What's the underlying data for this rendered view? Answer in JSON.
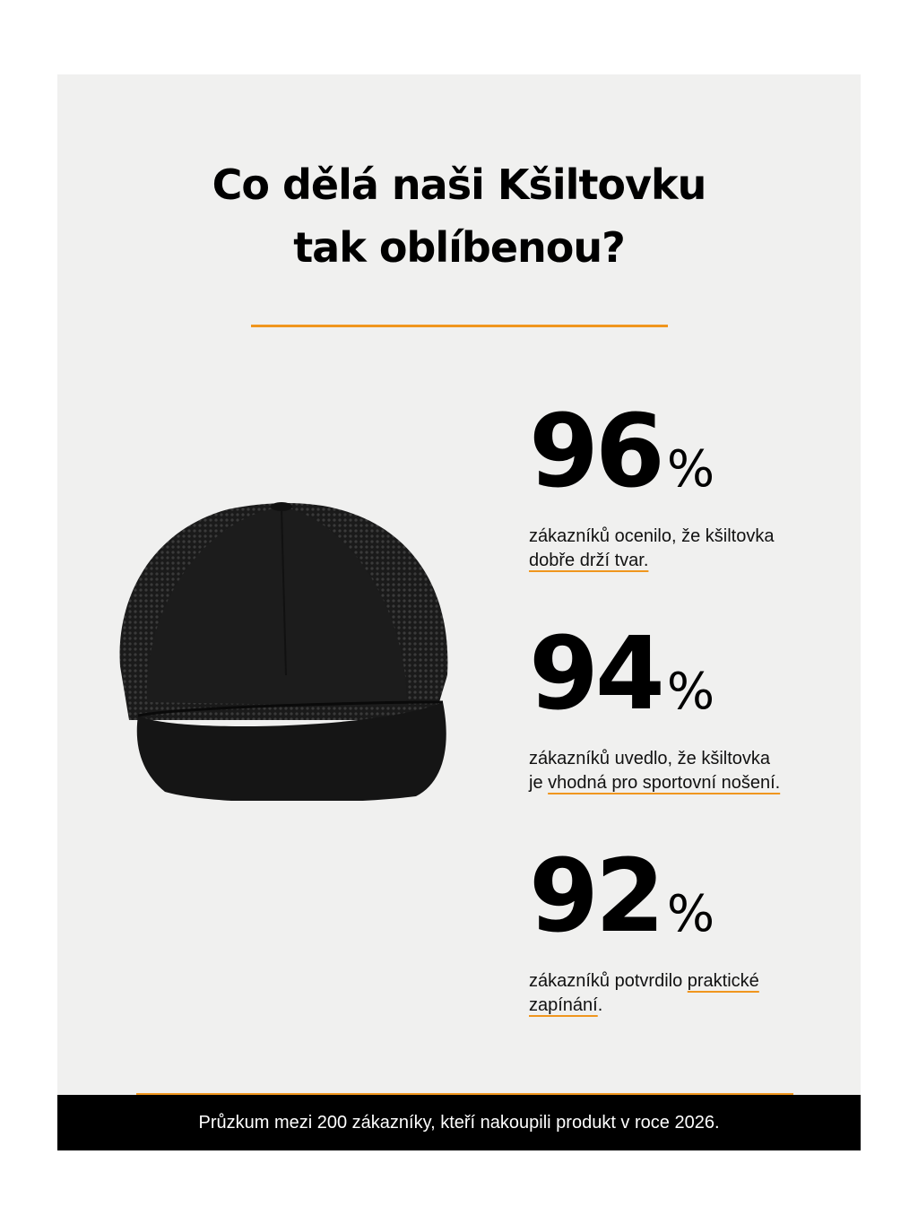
{
  "title": {
    "line1": "Co dělá naši Kšiltovku",
    "line2": "tak oblíbenou?"
  },
  "colors": {
    "accent": "#f0961e",
    "background": "#f0f0ef",
    "footer": "#000000"
  },
  "image": {
    "icon": "black-trucker-cap-image"
  },
  "stats": [
    {
      "value": "96",
      "unit": "%",
      "text_plain": "zákazníků ocenilo, že kšiltovka",
      "text_underlined": "dobře drží tvar."
    },
    {
      "value": "94",
      "unit": "%",
      "text_plain": "zákazníků uvedlo, že kšiltovka",
      "text_plain2": "je",
      "text_underlined": "vhodná pro sportovní nošení."
    },
    {
      "value": "92",
      "unit": "%",
      "text_plain": "zákazníků potvrdilo",
      "text_underlined": "praktické",
      "text_underlined2": "zapínání",
      "text_end": "."
    }
  ],
  "footer": {
    "text": "Průzkum mezi 200 zákazníky, kteří nakoupili produkt v roce 2026."
  }
}
